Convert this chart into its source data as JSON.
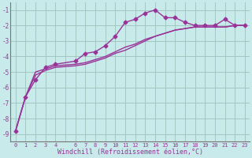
{
  "xlabel": "Windchill (Refroidissement éolien,°C)",
  "background_color": "#c8eaea",
  "grid_color": "#a0c8c0",
  "line_color": "#993399",
  "ylim": [
    -9.5,
    -0.5
  ],
  "xlim": [
    -0.5,
    23.5
  ],
  "curve1_x": [
    0,
    1,
    2,
    3,
    4,
    6,
    7,
    8,
    9,
    10,
    11,
    12,
    13,
    14,
    15,
    16,
    17,
    18,
    19,
    20,
    21,
    22,
    23
  ],
  "curve1_y": [
    -8.8,
    -6.6,
    -5.5,
    -4.7,
    -4.5,
    -4.3,
    -3.8,
    -3.7,
    -3.3,
    -2.7,
    -1.8,
    -1.6,
    -1.2,
    -1.0,
    -1.5,
    -1.5,
    -1.8,
    -2.0,
    -2.0,
    -2.0,
    -1.6,
    -2.0,
    -2.0
  ],
  "curve2_x": [
    0,
    1,
    2,
    3,
    4,
    6,
    7,
    8,
    9,
    10,
    11,
    12,
    13,
    14,
    15,
    16,
    17,
    18,
    19,
    20,
    21,
    22,
    23
  ],
  "curve2_y": [
    -8.8,
    -6.6,
    -5.0,
    -4.8,
    -4.6,
    -4.5,
    -4.4,
    -4.2,
    -4.0,
    -3.7,
    -3.4,
    -3.2,
    -2.9,
    -2.7,
    -2.5,
    -2.3,
    -2.2,
    -2.1,
    -2.1,
    -2.1,
    -2.1,
    -2.0,
    -2.0
  ],
  "curve3_x": [
    0,
    1,
    2,
    3,
    4,
    6,
    7,
    8,
    9,
    10,
    11,
    12,
    13,
    14,
    15,
    16,
    17,
    18,
    19,
    20,
    21,
    22,
    23
  ],
  "curve3_y": [
    -8.8,
    -6.6,
    -5.2,
    -4.9,
    -4.7,
    -4.6,
    -4.5,
    -4.3,
    -4.1,
    -3.8,
    -3.6,
    -3.3,
    -3.0,
    -2.7,
    -2.5,
    -2.3,
    -2.2,
    -2.1,
    -2.1,
    -2.1,
    -2.1,
    -2.0,
    -2.0
  ]
}
